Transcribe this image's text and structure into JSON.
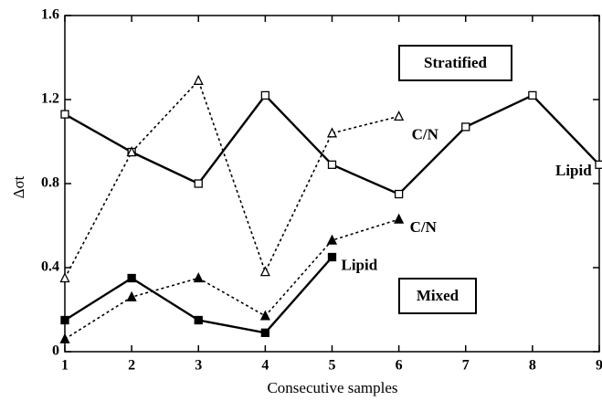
{
  "chart_data": {
    "type": "line",
    "x_label": "Consecutive samples",
    "y_label": "Δσt",
    "x": [
      1,
      2,
      3,
      4,
      5,
      6,
      7,
      8,
      9
    ],
    "xlim": [
      1,
      9
    ],
    "xticks": [
      1,
      2,
      3,
      4,
      5,
      6,
      7,
      8,
      9
    ],
    "ylim": [
      0,
      1.6
    ],
    "yticks": [
      0,
      0.4,
      0.8,
      1.2,
      1.6
    ],
    "annotations": [
      "Stratified",
      "Mixed"
    ],
    "series": [
      {
        "name": "Lipid",
        "color": "#000000",
        "line_style": "solid",
        "marker": "square",
        "marker_filled": false,
        "values": [
          1.13,
          0.95,
          0.8,
          1.22,
          0.89,
          0.75,
          1.07,
          1.22,
          0.89
        ]
      },
      {
        "name": "C/N",
        "color": "#000000",
        "line_style": "dotted",
        "marker": "triangle",
        "marker_filled": false,
        "values": [
          0.35,
          0.95,
          1.29,
          0.38,
          1.04,
          1.12,
          null,
          null,
          null
        ]
      },
      {
        "name": "Lipid",
        "color": "#000000",
        "line_style": "solid",
        "marker": "square",
        "marker_filled": true,
        "values": [
          0.15,
          0.35,
          0.15,
          0.09,
          0.45,
          null,
          null,
          null,
          null
        ]
      },
      {
        "name": "C/N",
        "color": "#000000",
        "line_style": "dotted",
        "marker": "triangle",
        "marker_filled": true,
        "values": [
          0.06,
          0.26,
          0.35,
          0.17,
          0.53,
          0.63,
          null,
          null,
          null
        ]
      }
    ]
  }
}
